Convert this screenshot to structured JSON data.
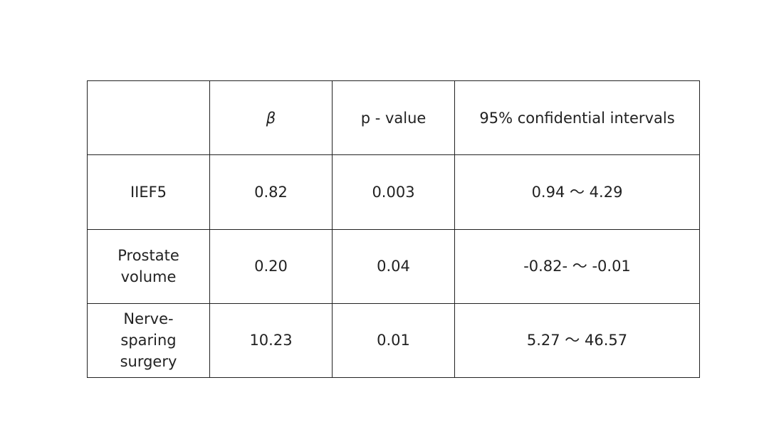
{
  "table": {
    "header": [
      "β",
      "p - value",
      "95% confidential intervals"
    ],
    "rows": [
      [
        "IIEF5",
        "0.82",
        "0.003",
        "0.94 〜 4.29"
      ],
      [
        "Prostate volume",
        "0.20",
        "0.04",
        "-0.82- 〜 -0.01"
      ],
      [
        "Nerve-sparing surgery",
        "10.23",
        "0.01",
        "5.27 〜 46.57"
      ]
    ]
  }
}
